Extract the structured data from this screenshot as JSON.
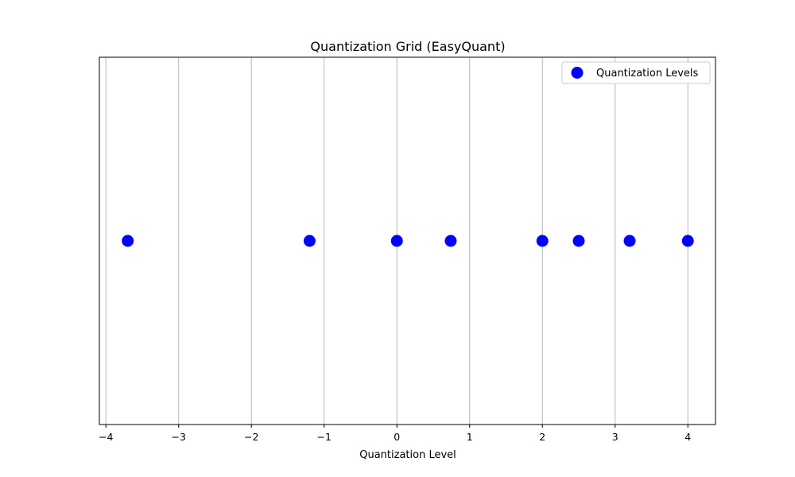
{
  "chart_data": {
    "type": "scatter",
    "title": "Quantization Grid (EasyQuant)",
    "xlabel": "Quantization Level",
    "ylabel": "",
    "xlim": [
      -4.09,
      4.38
    ],
    "ylim": [
      -1,
      1
    ],
    "x_ticks": [
      -4,
      -3,
      -2,
      -1,
      0,
      1,
      2,
      3,
      4
    ],
    "x_tick_labels": [
      "−4",
      "−3",
      "−2",
      "−1",
      "0",
      "1",
      "2",
      "3",
      "4"
    ],
    "grid": "x-only",
    "legend_position": "top-right",
    "series": [
      {
        "name": "Quantization Levels",
        "color": "#0000ff",
        "marker": "circle",
        "x": [
          -3.7,
          -1.2,
          0.0,
          0.74,
          2.0,
          2.5,
          3.2,
          4.0
        ],
        "y": [
          0,
          0,
          0,
          0,
          0,
          0,
          0,
          0
        ]
      }
    ]
  }
}
